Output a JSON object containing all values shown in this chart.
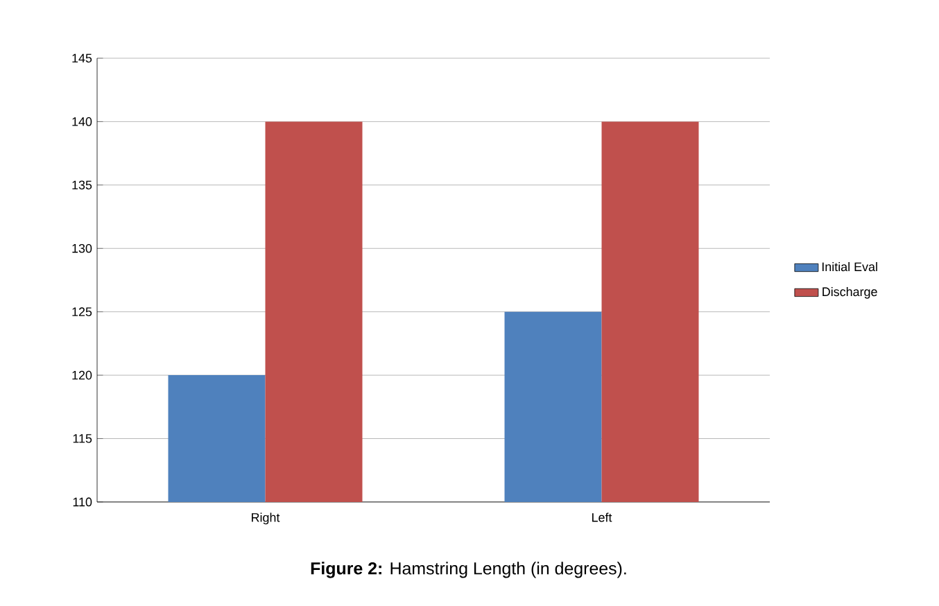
{
  "chart_data": {
    "type": "bar",
    "categories": [
      "Right",
      "Left"
    ],
    "series": [
      {
        "name": "Initial Eval",
        "color": "#4f81bd",
        "values": [
          120,
          125
        ]
      },
      {
        "name": "Discharge",
        "color": "#c0504d",
        "values": [
          140,
          140
        ]
      }
    ],
    "ylim": [
      110,
      145
    ],
    "yticks": [
      110,
      115,
      120,
      125,
      130,
      135,
      140,
      145
    ],
    "grid": "y",
    "legend": "right",
    "annotations": [
      "**Figure 2:** Hamstring Length (in degrees)."
    ]
  }
}
